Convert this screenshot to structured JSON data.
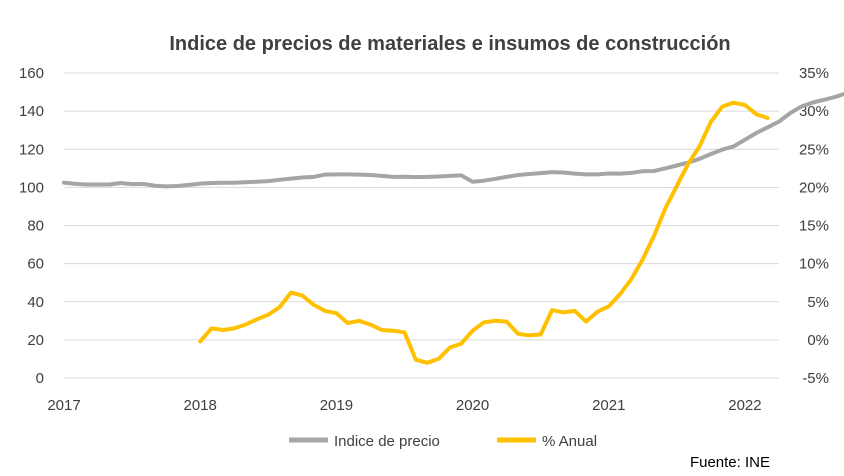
{
  "chart_data": {
    "type": "line",
    "title": "Indice de precios de materiales e insumos  de construcción",
    "source": "Fuente: INE",
    "x_ticks": [
      "2017",
      "2018",
      "2019",
      "2020",
      "2021",
      "2022"
    ],
    "x_range": [
      2017.0,
      2022.25
    ],
    "y_left": {
      "min": 0,
      "max": 160,
      "step": 20,
      "ticks": [
        "0",
        "20",
        "40",
        "60",
        "80",
        "100",
        "120",
        "140",
        "160"
      ]
    },
    "y_right": {
      "min": -5,
      "max": 35,
      "step": 5,
      "ticks": [
        "-5%",
        "0%",
        "5%",
        "10%",
        "15%",
        "20%",
        "25%",
        "30%",
        "35%"
      ]
    },
    "series": [
      {
        "name": "Indice de precio",
        "axis": "left",
        "color": "#A5A5A5",
        "start": 2017.0,
        "step_years": 0.0833333,
        "values": [
          102.5,
          101.8,
          101.5,
          101.5,
          101.5,
          102.3,
          101.7,
          101.8,
          100.9,
          100.5,
          100.7,
          101.3,
          102.0,
          102.3,
          102.4,
          102.4,
          102.7,
          103.0,
          103.3,
          104.0,
          104.6,
          105.2,
          105.5,
          106.7,
          106.8,
          106.8,
          106.7,
          106.5,
          106.0,
          105.5,
          105.6,
          105.4,
          105.5,
          105.7,
          106.0,
          106.3,
          103.0,
          103.5,
          104.5,
          105.5,
          106.5,
          107.0,
          107.5,
          108.0,
          107.8,
          107.2,
          106.8,
          106.8,
          107.3,
          107.2,
          107.6,
          108.5,
          108.6,
          110.0,
          111.5,
          113.0,
          115.0,
          117.5,
          119.8,
          121.5,
          125.0,
          128.5,
          131.5,
          134.5,
          139.0,
          142.5,
          144.5,
          146.0,
          147.5,
          149.5,
          151.5
        ]
      },
      {
        "name": "% Anual",
        "axis": "right",
        "color": "#FFC000",
        "start": 2018.0,
        "step_years": 0.0833333,
        "values": [
          -0.2,
          1.5,
          1.3,
          1.5,
          2.0,
          2.7,
          3.3,
          4.3,
          6.2,
          5.8,
          4.6,
          3.8,
          3.5,
          2.2,
          2.5,
          2.0,
          1.3,
          1.2,
          1.0,
          -2.6,
          -3.0,
          -2.5,
          -1.0,
          -0.5,
          1.2,
          2.3,
          2.5,
          2.4,
          0.8,
          0.6,
          0.7,
          3.9,
          3.6,
          3.8,
          2.4,
          3.7,
          4.4,
          6.0,
          8.0,
          10.6,
          13.7,
          17.3,
          20.2,
          23.1,
          25.4,
          28.6,
          30.6,
          31.1,
          30.8,
          29.6,
          29.1
        ]
      }
    ]
  }
}
